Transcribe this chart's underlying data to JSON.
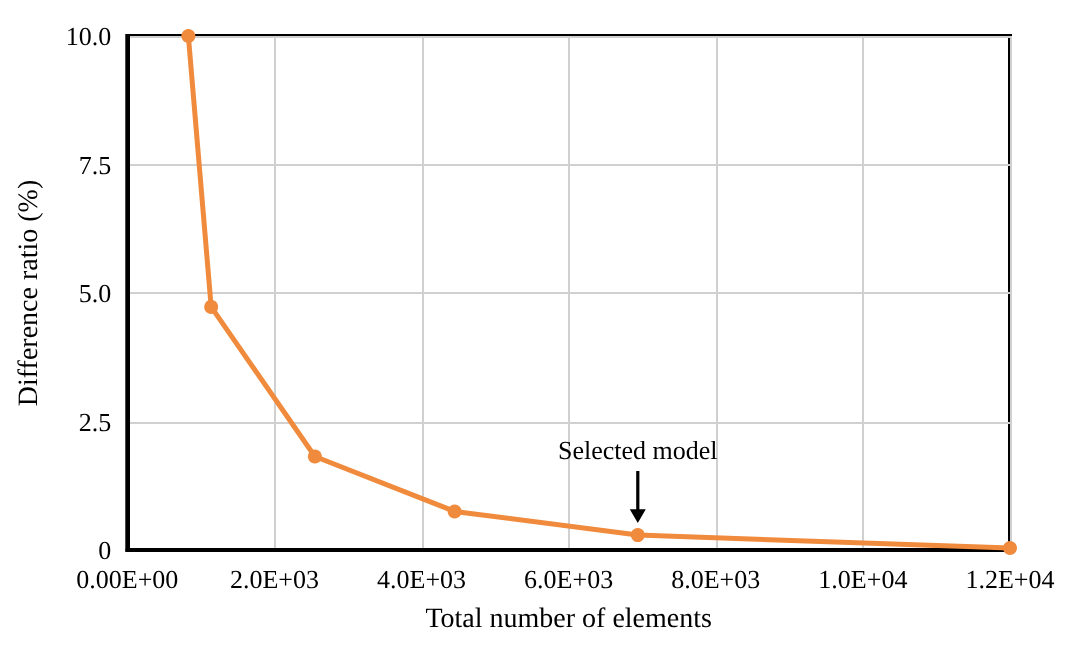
{
  "chart_data": {
    "type": "line",
    "xlabel": "Total number of elements",
    "ylabel": "Difference ratio (%)",
    "x": [
      830,
      1140,
      2550,
      4450,
      6940,
      12000
    ],
    "series": [
      {
        "color": "#f08a3c",
        "values": [
          10,
          4.73,
          1.82,
          0.75,
          0.29,
          0.04
        ]
      }
    ],
    "xlim": [
      0,
      12000
    ],
    "xticks": [
      {
        "value": 0,
        "label": "0.00E+00"
      },
      {
        "value": 2000,
        "label": "2.0E+03"
      },
      {
        "value": 4000,
        "label": "4.0E+03"
      },
      {
        "value": 6000,
        "label": "6.0E+03"
      },
      {
        "value": 8000,
        "label": "8.0E+03"
      },
      {
        "value": 10000,
        "label": "1.0E+04"
      },
      {
        "value": 12000,
        "label": "1.2E+04"
      }
    ],
    "ylim": [
      0,
      10
    ],
    "yticks": [
      0,
      {
        "value": 2.5,
        "label": "2.5"
      },
      {
        "value": 5,
        "label": "5.0"
      },
      {
        "value": 7.5,
        "label": "7.5"
      },
      {
        "value": 10,
        "label": "10.0"
      }
    ],
    "annotations": [
      {
        "text": "Selected model",
        "x": 6940,
        "y": 0.29
      }
    ],
    "grid": true,
    "marker": "circle",
    "line_style": "solid"
  }
}
